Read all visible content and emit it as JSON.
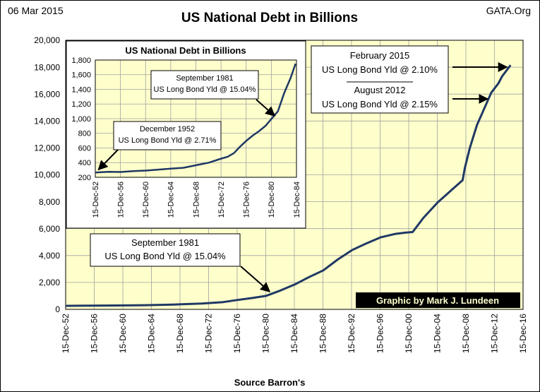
{
  "header": {
    "date": "06 Mar 2015",
    "source_site": "GATA.Org"
  },
  "credit": "Graphic by Mark J. Lundeen",
  "footer": {
    "source": "Source Barron's"
  },
  "colors": {
    "plot_bg": "#ffffcc",
    "line": "#1f3864",
    "grid": "#a0a0a0",
    "credit_bg": "#000000",
    "credit_text": "#ffffcc"
  },
  "chart_data": [
    {
      "type": "line",
      "title": "US National Debt in Billions",
      "xlabel": "",
      "ylabel": "",
      "ylim": [
        0,
        20000
      ],
      "yticks": [
        0,
        2000,
        4000,
        6000,
        8000,
        10000,
        12000,
        14000,
        16000,
        18000,
        20000
      ],
      "ytick_labels": [
        "0",
        "2,000",
        "4,000",
        "6,000",
        "8,000",
        "10,000",
        "12,000",
        "14,000",
        "16,000",
        "18,000",
        "20,000"
      ],
      "xlim": [
        1952.95,
        2016.95
      ],
      "xticks": [
        1952.95,
        1956.95,
        1960.95,
        1964.95,
        1968.95,
        1972.95,
        1976.95,
        1980.95,
        1984.95,
        1988.95,
        1992.95,
        1996.95,
        2000.95,
        2004.95,
        2008.95,
        2012.95,
        2016.95
      ],
      "xtick_labels": [
        "15-Dec-52",
        "15-Dec-56",
        "15-Dec-60",
        "15-Dec-64",
        "15-Dec-68",
        "15-Dec-72",
        "15-Dec-76",
        "15-Dec-80",
        "15-Dec-84",
        "15-Dec-88",
        "15-Dec-92",
        "15-Dec-96",
        "15-Dec-00",
        "15-Dec-04",
        "15-Dec-08",
        "15-Dec-12",
        "15-Dec-16"
      ],
      "grid": true,
      "series": [
        {
          "x": [
            1952.95,
            1956,
            1960,
            1964,
            1968,
            1972,
            1975,
            1977,
            1979,
            1981,
            1983,
            1985,
            1987,
            1989,
            1991,
            1993,
            1995,
            1997,
            1999,
            2000.5,
            2001.5,
            2003,
            2005,
            2007,
            2008.5,
            2008.8,
            2009.5,
            2010.5,
            2011.5,
            2012.5,
            2013.5,
            2014,
            2015.2
          ],
          "y": [
            265,
            272,
            290,
            312,
            355,
            430,
            540,
            700,
            840,
            1000,
            1400,
            1850,
            2400,
            2900,
            3700,
            4400,
            4900,
            5350,
            5600,
            5700,
            5750,
            6800,
            7950,
            8900,
            9600,
            10500,
            12000,
            13700,
            14900,
            16100,
            16800,
            17300,
            18150
          ]
        }
      ],
      "annotations": [
        {
          "id": "sep1981",
          "lines": [
            "September 1981",
            "US Long Bond Yld @ 15.04%"
          ],
          "x": 1981.7,
          "y": 1000
        },
        {
          "id": "feb2015",
          "lines": [
            "February 2015",
            "US Long Bond Yld @ 2.10%"
          ],
          "x": 2015.1,
          "y": 18150
        },
        {
          "id": "aug2012",
          "lines": [
            "August 2012",
            "US Long Bond Yld @ 2.15%"
          ],
          "x": 2012.6,
          "y": 15800
        }
      ]
    },
    {
      "type": "line",
      "title": "US National Debt in Billions",
      "ylim": [
        200,
        1800
      ],
      "yticks": [
        200,
        400,
        600,
        800,
        1000,
        1200,
        1400,
        1600,
        1800
      ],
      "ytick_labels": [
        "200",
        "400",
        "600",
        "800",
        "1,000",
        "1,200",
        "1,400",
        "1,600",
        "1,800"
      ],
      "xlim": [
        1952.95,
        1984.95
      ],
      "xticks": [
        1952.95,
        1956.95,
        1960.95,
        1964.95,
        1968.95,
        1972.95,
        1976.95,
        1980.95,
        1984.95
      ],
      "xtick_labels": [
        "15-Dec-52",
        "15-Dec-56",
        "15-Dec-60",
        "15-Dec-64",
        "15-Dec-68",
        "15-Dec-72",
        "15-Dec-76",
        "15-Dec-80",
        "15-Dec-84"
      ],
      "grid": true,
      "series": [
        {
          "x": [
            1952.95,
            1955,
            1957,
            1959,
            1961,
            1963,
            1965,
            1967,
            1969,
            1971,
            1973,
            1974,
            1975,
            1976,
            1977,
            1978,
            1979,
            1980,
            1981,
            1982,
            1983,
            1984,
            1984.8
          ],
          "y": [
            265,
            275,
            272,
            285,
            292,
            305,
            318,
            330,
            365,
            400,
            455,
            480,
            530,
            620,
            700,
            770,
            830,
            900,
            1000,
            1100,
            1350,
            1550,
            1750
          ]
        }
      ],
      "annotations": [
        {
          "id": "dec1952",
          "lines": [
            "December 1952",
            "US Long Bond Yld @ 2.71%"
          ],
          "x": 1953.0,
          "y": 265
        },
        {
          "id": "sep1981_inset",
          "lines": [
            "September 1981",
            "US Long Bond Yld @ 15.04%"
          ],
          "x": 1981.7,
          "y": 1000
        }
      ]
    }
  ]
}
